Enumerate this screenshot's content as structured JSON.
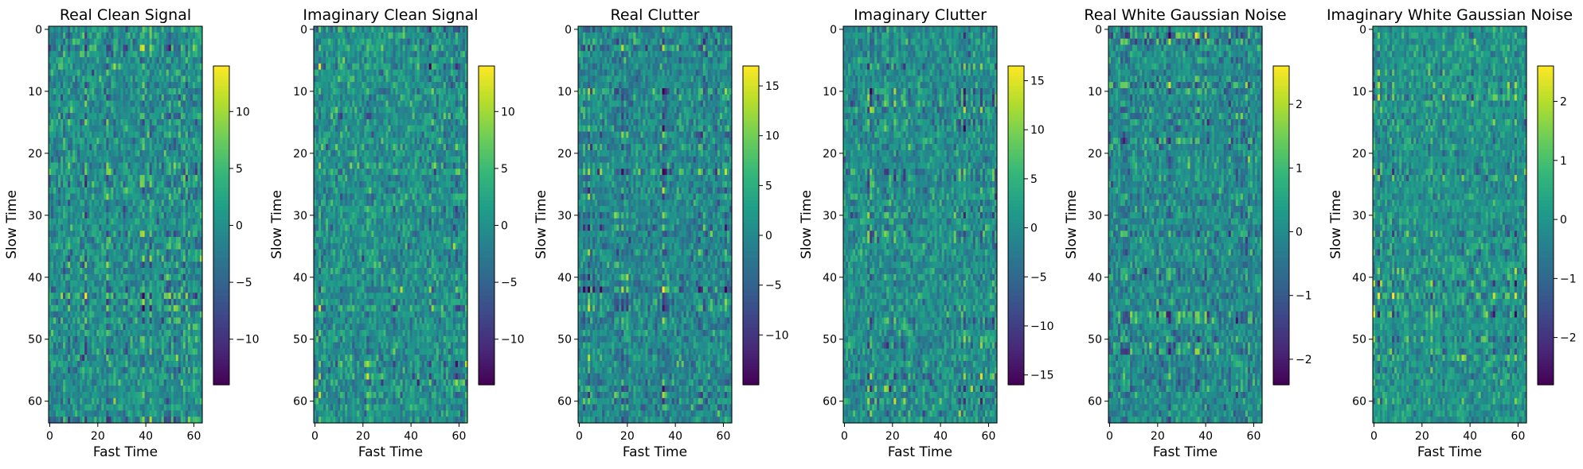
{
  "chart_data": [
    {
      "type": "heatmap",
      "title": "Real Clean Signal",
      "xlabel": "Fast Time",
      "ylabel": "Slow Time",
      "grid_size": [
        64,
        64
      ],
      "xlim": [
        0,
        63
      ],
      "ylim": [
        63,
        0
      ],
      "x_ticks": [
        0,
        20,
        40,
        60
      ],
      "y_ticks": [
        0,
        10,
        20,
        30,
        40,
        50,
        60
      ],
      "colorbar": {
        "colormap": "viridis",
        "range": [
          -14,
          14
        ],
        "ticks": [
          -10,
          -5,
          0,
          5,
          10
        ]
      },
      "value_std": 4.5,
      "seed": 11
    },
    {
      "type": "heatmap",
      "title": "Imaginary Clean Signal",
      "xlabel": "Fast Time",
      "ylabel": "Slow Time",
      "grid_size": [
        64,
        64
      ],
      "xlim": [
        0,
        63
      ],
      "ylim": [
        63,
        0
      ],
      "x_ticks": [
        0,
        20,
        40,
        60
      ],
      "y_ticks": [
        0,
        10,
        20,
        30,
        40,
        50,
        60
      ],
      "colorbar": {
        "colormap": "viridis",
        "range": [
          -14,
          14
        ],
        "ticks": [
          -10,
          -5,
          0,
          5,
          10
        ]
      },
      "value_std": 4.5,
      "seed": 23
    },
    {
      "type": "heatmap",
      "title": "Real Clutter",
      "xlabel": "Fast Time",
      "ylabel": "Slow Time",
      "grid_size": [
        64,
        64
      ],
      "xlim": [
        0,
        63
      ],
      "ylim": [
        63,
        0
      ],
      "x_ticks": [
        0,
        20,
        40,
        60
      ],
      "y_ticks": [
        0,
        10,
        20,
        30,
        40,
        50,
        60
      ],
      "colorbar": {
        "colormap": "viridis",
        "range": [
          -15,
          17
        ],
        "ticks": [
          -10,
          -5,
          0,
          5,
          10,
          15
        ]
      },
      "value_std": 5,
      "seed": 37
    },
    {
      "type": "heatmap",
      "title": "Imaginary Clutter",
      "xlabel": "Fast Time",
      "ylabel": "Slow Time",
      "grid_size": [
        64,
        64
      ],
      "xlim": [
        0,
        63
      ],
      "ylim": [
        63,
        0
      ],
      "x_ticks": [
        0,
        20,
        40,
        60
      ],
      "y_ticks": [
        0,
        10,
        20,
        30,
        40,
        50,
        60
      ],
      "colorbar": {
        "colormap": "viridis",
        "range": [
          -16,
          16.5
        ],
        "ticks": [
          -15,
          -10,
          -5,
          0,
          5,
          10,
          15
        ]
      },
      "value_std": 5,
      "seed": 41
    },
    {
      "type": "heatmap",
      "title": "Real White Gaussian Noise",
      "xlabel": "Fast Time",
      "ylabel": "Slow Time",
      "grid_size": [
        64,
        64
      ],
      "xlim": [
        0,
        63
      ],
      "ylim": [
        63,
        0
      ],
      "x_ticks": [
        0,
        20,
        40,
        60
      ],
      "y_ticks": [
        0,
        10,
        20,
        30,
        40,
        50,
        60
      ],
      "colorbar": {
        "colormap": "viridis",
        "range": [
          -2.4,
          2.6
        ],
        "ticks": [
          -2,
          -1,
          0,
          1,
          2
        ]
      },
      "value_std": 0.75,
      "seed": 53
    },
    {
      "type": "heatmap",
      "title": "Imaginary White Gaussian Noise",
      "xlabel": "Fast Time",
      "ylabel": "Slow Time",
      "grid_size": [
        64,
        64
      ],
      "xlim": [
        0,
        63
      ],
      "ylim": [
        63,
        0
      ],
      "x_ticks": [
        0,
        20,
        40,
        60
      ],
      "y_ticks": [
        0,
        10,
        20,
        30,
        40,
        50,
        60
      ],
      "colorbar": {
        "colormap": "viridis",
        "range": [
          -2.8,
          2.6
        ],
        "ticks": [
          -2,
          -1,
          0,
          1,
          2
        ]
      },
      "value_std": 0.75,
      "seed": 67
    }
  ]
}
